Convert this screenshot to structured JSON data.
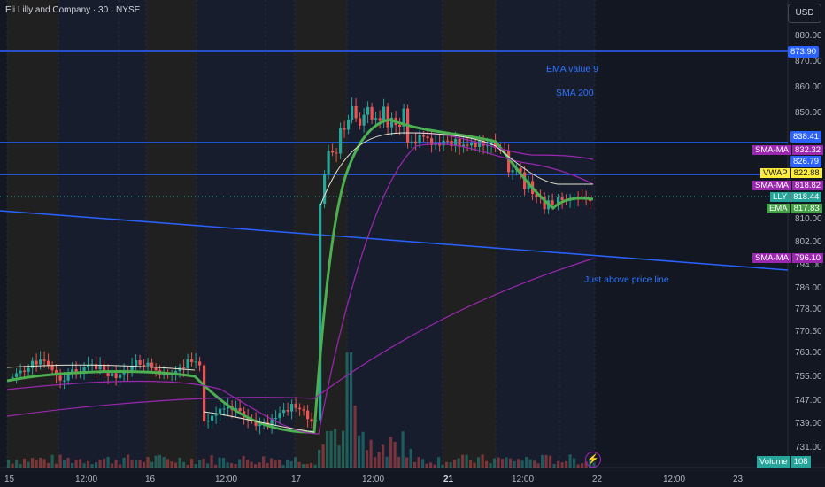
{
  "header": {
    "title": "Eli Lilly and Company · 30 · NYSE",
    "currency_button": "USD"
  },
  "price_axis": {
    "ticks": [
      "880.00",
      "870.00",
      "860.00",
      "850.00",
      "810.00",
      "802.00",
      "794.00",
      "786.00",
      "778.00",
      "770.50",
      "763.00",
      "755.00",
      "747.00",
      "739.00",
      "731.00"
    ]
  },
  "time_axis": {
    "labels": [
      "15",
      "12:00",
      "16",
      "12:00",
      "17",
      "12:00",
      "21",
      "12:00",
      "22",
      "12:00",
      "23"
    ]
  },
  "badges": {
    "line_873": "873.90",
    "line_838": "838.41",
    "sma_ma_1": {
      "label": "SMA-MA",
      "value": "832.32"
    },
    "line_826": "826.79",
    "vwap": {
      "label": "VWAP",
      "value": "822.88"
    },
    "sma_ma_2": {
      "label": "SMA-MA",
      "value": "818.82"
    },
    "lly": {
      "label": "LLY",
      "value": "818.44"
    },
    "ema": {
      "label": "EMA",
      "value": "817.83"
    },
    "sma_ma_3": {
      "label": "SMA-MA",
      "value": "796.10"
    }
  },
  "annotations": {
    "ema_note": "EMA value 9",
    "sma_note": "SMA 200",
    "price_note": "Just above price line"
  },
  "volume": {
    "label": "Volume",
    "value": "108"
  },
  "colors": {
    "background": "#131722",
    "up": "#26a69a",
    "down": "#ef5350",
    "trendline": "#2962ff",
    "ema": "#4caf50",
    "sma": "#9c27b0",
    "vwap": "#ffeb3b"
  }
}
